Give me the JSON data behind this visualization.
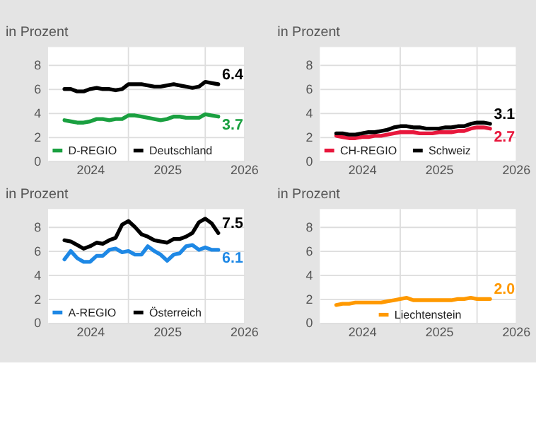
{
  "chart_data": [
    {
      "type": "line",
      "title": "in Prozent",
      "x": [
        "2023-09",
        "2023-10",
        "2023-11",
        "2023-12",
        "2024-01",
        "2024-02",
        "2024-03",
        "2024-04",
        "2024-05",
        "2024-06",
        "2024-07",
        "2024-08",
        "2024-09",
        "2024-10",
        "2024-11",
        "2024-12",
        "2025-01",
        "2025-02",
        "2025-03",
        "2025-04",
        "2025-05",
        "2025-06",
        "2025-07",
        "2025-08",
        "2025-09"
      ],
      "series": [
        {
          "name": "D-REGIO",
          "color": "#1aa040",
          "values": [
            3.4,
            3.3,
            3.2,
            3.2,
            3.3,
            3.5,
            3.5,
            3.4,
            3.5,
            3.5,
            3.8,
            3.8,
            3.7,
            3.6,
            3.5,
            3.4,
            3.5,
            3.7,
            3.7,
            3.6,
            3.6,
            3.6,
            3.9,
            3.8,
            3.7
          ]
        },
        {
          "name": "Deutschland",
          "color": "#000000",
          "values": [
            6.0,
            6.0,
            5.8,
            5.8,
            6.0,
            6.1,
            6.0,
            6.0,
            5.9,
            6.0,
            6.4,
            6.4,
            6.4,
            6.3,
            6.2,
            6.2,
            6.3,
            6.4,
            6.3,
            6.2,
            6.1,
            6.2,
            6.6,
            6.5,
            6.4
          ]
        }
      ],
      "annotations": [
        {
          "text": "3.7",
          "x": "2025-09",
          "y": 3.7
        },
        {
          "text": "6.4",
          "x": "2025-09",
          "y": 6.4
        }
      ],
      "xlim": [
        "2023-06-15",
        "2026-01-01"
      ],
      "xticks": [
        {
          "value": "2024-01-01",
          "label": "2024"
        },
        {
          "value": "2024-07-01",
          "label": null
        },
        {
          "value": "2025-01-01",
          "label": "2025"
        },
        {
          "value": "2025-07-01",
          "label": null
        },
        {
          "value": "2026-01-01",
          "label": "2026"
        }
      ],
      "ylim": [
        0,
        9.5
      ],
      "yticks": [
        0,
        2,
        4,
        6,
        8
      ],
      "grid": true,
      "legend": "bottom left",
      "line_style": "solid",
      "marker": "none"
    },
    {
      "type": "line",
      "title": "in Prozent",
      "x": [
        "2023-09",
        "2023-10",
        "2023-11",
        "2023-12",
        "2024-01",
        "2024-02",
        "2024-03",
        "2024-04",
        "2024-05",
        "2024-06",
        "2024-07",
        "2024-08",
        "2024-09",
        "2024-10",
        "2024-11",
        "2024-12",
        "2025-01",
        "2025-02",
        "2025-03",
        "2025-04",
        "2025-05",
        "2025-06",
        "2025-07",
        "2025-08",
        "2025-09"
      ],
      "series": [
        {
          "name": "CH-REGIO",
          "color": "#e8173c",
          "values": [
            2.1,
            2.0,
            1.9,
            1.9,
            2.0,
            2.0,
            2.1,
            2.1,
            2.2,
            2.3,
            2.4,
            2.4,
            2.4,
            2.3,
            2.3,
            2.3,
            2.4,
            2.4,
            2.4,
            2.5,
            2.5,
            2.7,
            2.8,
            2.8,
            2.7
          ]
        },
        {
          "name": "Schweiz",
          "color": "#000000",
          "values": [
            2.3,
            2.3,
            2.2,
            2.2,
            2.3,
            2.4,
            2.4,
            2.5,
            2.6,
            2.8,
            2.9,
            2.9,
            2.8,
            2.8,
            2.7,
            2.7,
            2.7,
            2.8,
            2.8,
            2.9,
            2.9,
            3.1,
            3.2,
            3.2,
            3.1
          ]
        }
      ],
      "annotations": [
        {
          "text": "2.7",
          "x": "2025-09",
          "y": 2.7
        },
        {
          "text": "3.1",
          "x": "2025-09",
          "y": 3.1
        }
      ],
      "xlim": [
        "2023-06-15",
        "2026-01-01"
      ],
      "xticks": [
        {
          "value": "2024-01-01",
          "label": "2024"
        },
        {
          "value": "2024-07-01",
          "label": null
        },
        {
          "value": "2025-01-01",
          "label": "2025"
        },
        {
          "value": "2025-07-01",
          "label": null
        },
        {
          "value": "2026-01-01",
          "label": "2026"
        }
      ],
      "ylim": [
        0,
        9.5
      ],
      "yticks": [
        0,
        2,
        4,
        6,
        8
      ],
      "grid": true,
      "legend": "bottom left",
      "line_style": "solid",
      "marker": "none"
    },
    {
      "type": "line",
      "title": "in Prozent",
      "x": [
        "2023-09",
        "2023-10",
        "2023-11",
        "2023-12",
        "2024-01",
        "2024-02",
        "2024-03",
        "2024-04",
        "2024-05",
        "2024-06",
        "2024-07",
        "2024-08",
        "2024-09",
        "2024-10",
        "2024-11",
        "2024-12",
        "2025-01",
        "2025-02",
        "2025-03",
        "2025-04",
        "2025-05",
        "2025-06",
        "2025-07",
        "2025-08",
        "2025-09"
      ],
      "series": [
        {
          "name": "A-REGIO",
          "color": "#1e88e5",
          "values": [
            5.3,
            6.0,
            5.4,
            5.1,
            5.1,
            5.6,
            5.6,
            6.1,
            6.2,
            5.9,
            6.0,
            5.7,
            5.7,
            6.4,
            6.0,
            5.7,
            5.2,
            5.7,
            5.8,
            6.4,
            6.5,
            6.1,
            6.3,
            6.1,
            6.1
          ]
        },
        {
          "name": "Österreich",
          "color": "#000000",
          "values": [
            6.9,
            6.8,
            6.5,
            6.2,
            6.4,
            6.7,
            6.6,
            6.9,
            7.1,
            8.2,
            8.5,
            8.0,
            7.4,
            7.2,
            6.9,
            6.8,
            6.7,
            7.0,
            7.0,
            7.2,
            7.5,
            8.4,
            8.7,
            8.3,
            7.5
          ]
        }
      ],
      "annotations": [
        {
          "text": "6.1",
          "x": "2025-09",
          "y": 6.1
        },
        {
          "text": "7.5",
          "x": "2025-09",
          "y": 7.5
        }
      ],
      "xlim": [
        "2023-06-15",
        "2026-01-01"
      ],
      "xticks": [
        {
          "value": "2024-01-01",
          "label": "2024"
        },
        {
          "value": "2024-07-01",
          "label": null
        },
        {
          "value": "2025-01-01",
          "label": "2025"
        },
        {
          "value": "2025-07-01",
          "label": null
        },
        {
          "value": "2026-01-01",
          "label": "2026"
        }
      ],
      "ylim": [
        0,
        9.5
      ],
      "yticks": [
        0,
        2,
        4,
        6,
        8
      ],
      "grid": true,
      "legend": "bottom left",
      "line_style": "solid",
      "marker": "none"
    },
    {
      "type": "line",
      "title": "in Prozent",
      "x": [
        "2023-09",
        "2023-10",
        "2023-11",
        "2023-12",
        "2024-01",
        "2024-02",
        "2024-03",
        "2024-04",
        "2024-05",
        "2024-06",
        "2024-07",
        "2024-08",
        "2024-09",
        "2024-10",
        "2024-11",
        "2024-12",
        "2025-01",
        "2025-02",
        "2025-03",
        "2025-04",
        "2025-05",
        "2025-06",
        "2025-07",
        "2025-08",
        "2025-09"
      ],
      "series": [
        {
          "name": "Liechtenstein",
          "color": "#ff9900",
          "values": [
            1.5,
            1.6,
            1.6,
            1.7,
            1.7,
            1.7,
            1.7,
            1.7,
            1.8,
            1.9,
            2.0,
            2.1,
            1.9,
            1.9,
            1.9,
            1.9,
            1.9,
            1.9,
            1.9,
            2.0,
            2.0,
            2.1,
            2.0,
            2.0,
            2.0
          ]
        }
      ],
      "annotations": [
        {
          "text": "2.0",
          "x": "2025-09",
          "y": 2.0
        }
      ],
      "xlim": [
        "2023-06-15",
        "2026-01-01"
      ],
      "xticks": [
        {
          "value": "2024-01-01",
          "label": "2024"
        },
        {
          "value": "2024-07-01",
          "label": null
        },
        {
          "value": "2025-01-01",
          "label": "2025"
        },
        {
          "value": "2025-07-01",
          "label": null
        },
        {
          "value": "2026-01-01",
          "label": "2026"
        }
      ],
      "ylim": [
        0,
        9.5
      ],
      "yticks": [
        0,
        2,
        4,
        6,
        8
      ],
      "grid": true,
      "legend": "bottom",
      "line_style": "solid",
      "marker": "none"
    }
  ]
}
